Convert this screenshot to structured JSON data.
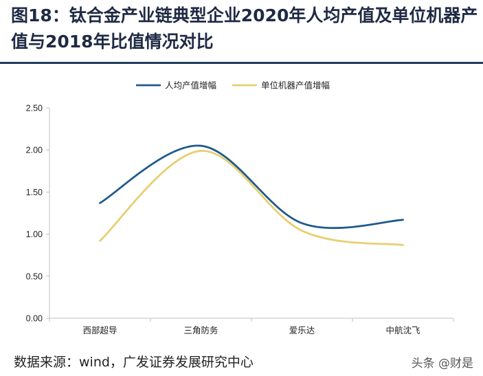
{
  "header": {
    "title": "图18：钛合金产业链典型企业2020年人均产值及单位机器产值与2018年比值情况对比"
  },
  "footer": {
    "source": "数据来源：wind，广发证券发展研究中心",
    "watermark": "头条 @财是"
  },
  "colors": {
    "series_1": "#1f5a8c",
    "series_2": "#e6cf72",
    "axis": "#bfbfbf"
  },
  "chart_data": {
    "type": "line",
    "categories": [
      "西部超导",
      "三角防务",
      "爱乐达",
      "中航沈飞"
    ],
    "series": [
      {
        "name": "人均产值增幅",
        "values": [
          1.37,
          2.05,
          1.13,
          1.17
        ]
      },
      {
        "name": "单位机器产值增幅",
        "values": [
          0.92,
          1.99,
          1.04,
          0.87
        ]
      }
    ],
    "y_ticks": [
      "2.50",
      "2.00",
      "1.50",
      "1.00",
      "0.50",
      "0.00"
    ],
    "ylim": [
      0,
      2.5
    ],
    "legend_position": "top-center",
    "grid": false,
    "smooth": true
  }
}
